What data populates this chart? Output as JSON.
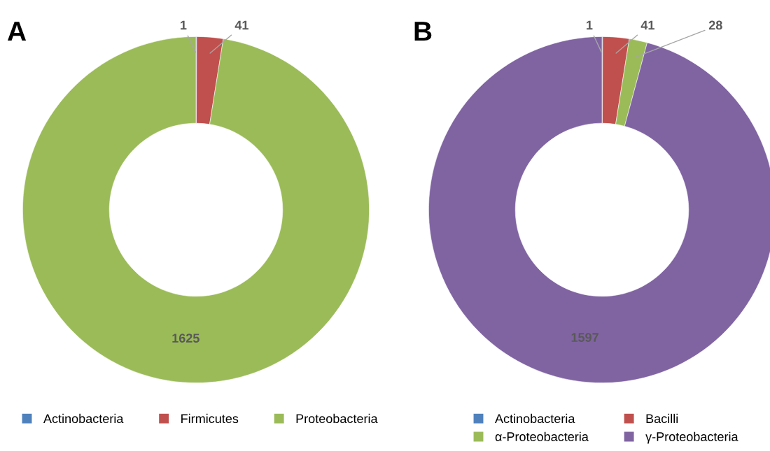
{
  "chart_data": [
    {
      "type": "donut",
      "title": "A",
      "categories": [
        "Actinobacteria",
        "Firmicutes",
        "Proteobacteria"
      ],
      "values": [
        1,
        41,
        1625
      ],
      "colors": [
        "#4f81bd",
        "#c0504d",
        "#9bbb59"
      ],
      "data_labels": true,
      "legend": "bottom"
    },
    {
      "type": "donut",
      "title": "B",
      "categories": [
        "Actinobacteria",
        "Bacilli",
        "α-Proteobacteria",
        "γ-Proteobacteria"
      ],
      "values": [
        1,
        41,
        28,
        1597
      ],
      "colors": [
        "#4f81bd",
        "#c0504d",
        "#9bbb59",
        "#8064a2"
      ],
      "data_labels": true,
      "legend": "bottom"
    }
  ]
}
